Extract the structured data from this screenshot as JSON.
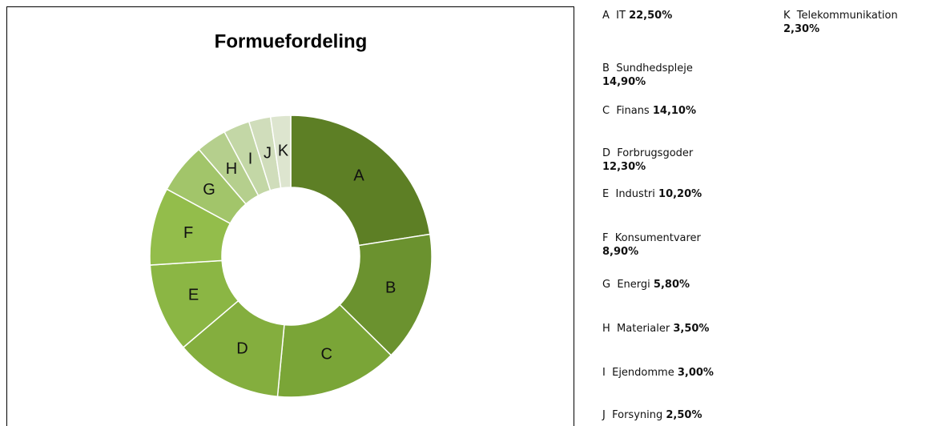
{
  "chart_data": {
    "type": "donut",
    "title": "Formuefordeling",
    "categories": [
      "A",
      "B",
      "C",
      "D",
      "E",
      "F",
      "G",
      "H",
      "I",
      "J",
      "K"
    ],
    "names": [
      "IT",
      "Sundhedspleje",
      "Finans",
      "Forbrugsgoder",
      "Industri",
      "Konsumentvarer",
      "Energi",
      "Materialer",
      "Ejendomme",
      "Forsyning",
      "Telekommunikation"
    ],
    "values": [
      22.5,
      14.9,
      14.1,
      12.3,
      10.2,
      8.9,
      5.8,
      3.5,
      3.0,
      2.5,
      2.3
    ],
    "value_labels": [
      "22,50%",
      "14,90%",
      "14,10%",
      "12,30%",
      "10,20%",
      "8,90%",
      "5,80%",
      "3,50%",
      "3,00%",
      "2,50%",
      "2,30%"
    ],
    "colors": [
      "#5d7f25",
      "#6b922f",
      "#7aa537",
      "#84ae3e",
      "#8bb644",
      "#93bd4b",
      "#a2c56a",
      "#b5cf8d",
      "#c3d7a6",
      "#d0ddbb",
      "#dde5cf"
    ]
  }
}
